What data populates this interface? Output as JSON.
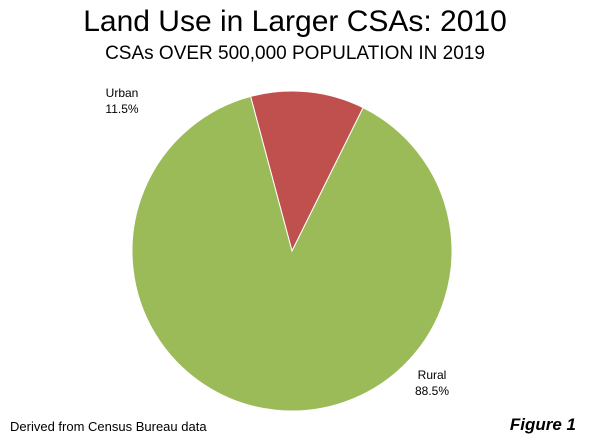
{
  "chart_data": {
    "type": "pie",
    "title": "Land Use in Larger CSAs: 2010",
    "subtitle": "CSAs OVER 500,000 POPULATION IN 2019",
    "slices": [
      {
        "label": "Urban",
        "value": 11.5,
        "value_label": "11.5%",
        "color": "#c0504d"
      },
      {
        "label": "Rural",
        "value": 88.5,
        "value_label": "88.5%",
        "color": "#9bbb59"
      }
    ],
    "start_angle_deg": -15
  },
  "footer": {
    "source": "Derived from Census Bureau data",
    "figure_label": "Figure 1"
  }
}
